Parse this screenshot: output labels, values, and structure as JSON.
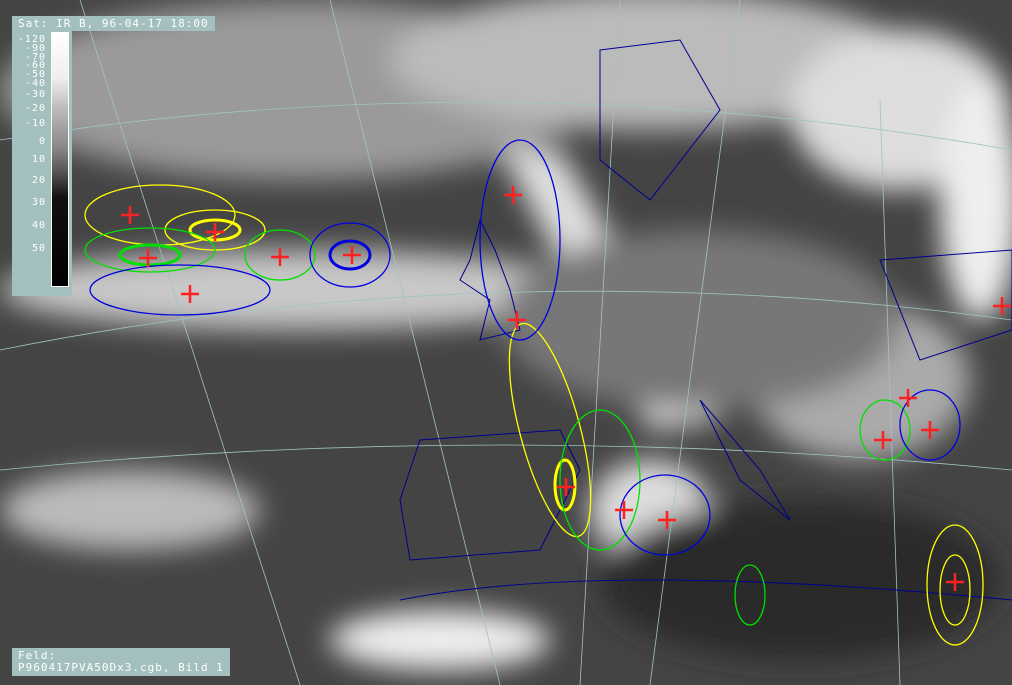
{
  "header": {
    "title": "Sat: IR  B, 96-04-17 18:00"
  },
  "legend": {
    "ticks": [
      "-120",
      "-90",
      "-70",
      "-60",
      "-50",
      "-40",
      "-30",
      "-20",
      "-10",
      "0",
      "10",
      "20",
      "30",
      "40",
      "50"
    ]
  },
  "footer": {
    "label": "Feld:",
    "file": "P960417PVA50Dx3.cgb, Bild 1"
  },
  "colors": {
    "yellow": "#ffff00",
    "green": "#00e000",
    "blue": "#0000e0",
    "cross": "#ff2020",
    "coast": "#000090",
    "grid": "#9fc4c4"
  },
  "markers": {
    "icon": "red-cross",
    "count": 15
  }
}
